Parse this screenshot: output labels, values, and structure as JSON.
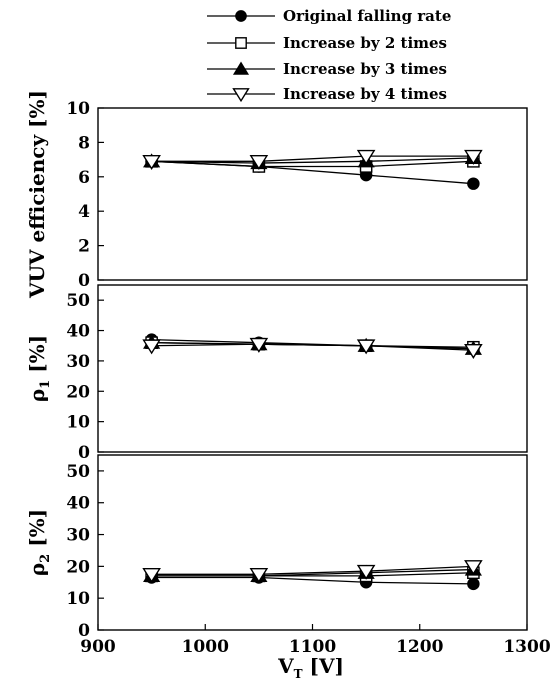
{
  "chart_data": {
    "type": "line",
    "x": [
      950,
      1050,
      1150,
      1250
    ],
    "xlim": [
      900,
      1300
    ],
    "xticks": [
      "900",
      "1000",
      "1100",
      "1200",
      "1300"
    ],
    "xlabel": "V",
    "xlabel_sub": "T",
    "xlabel_unit": " [V]",
    "legend_position": "top-right",
    "series": [
      {
        "key": "orig",
        "name": "Original falling rate",
        "marker": "filled-circle"
      },
      {
        "key": "x2",
        "name": "Increase by 2 times",
        "marker": "open-square"
      },
      {
        "key": "x3",
        "name": "Increase by 3 times",
        "marker": "filled-triangle-up"
      },
      {
        "key": "x4",
        "name": "Increase by 4 times",
        "marker": "open-triangle-down"
      }
    ],
    "panels": [
      {
        "ylabel": "VUV efficiency [%]",
        "ylim": [
          0,
          10
        ],
        "yticks": [
          "0",
          "2",
          "4",
          "6",
          "8",
          "10"
        ],
        "values": {
          "orig": [
            6.9,
            6.6,
            6.1,
            5.6
          ],
          "x2": [
            6.9,
            6.6,
            6.6,
            6.9
          ],
          "x3": [
            6.9,
            6.8,
            6.9,
            7.1
          ],
          "x4": [
            6.9,
            6.9,
            7.2,
            7.2
          ]
        }
      },
      {
        "ylabel": "ρ",
        "ylabel_sub": "1",
        "ylabel_unit": " [%]",
        "ylim": [
          0,
          55
        ],
        "yticks": [
          "0",
          "10",
          "20",
          "30",
          "40",
          "50"
        ],
        "values": {
          "orig": [
            37,
            36,
            35,
            34
          ],
          "x2": [
            36,
            35.5,
            35,
            34.5
          ],
          "x3": [
            36,
            35.5,
            35,
            34
          ],
          "x4": [
            35,
            35.5,
            35,
            33.5
          ]
        }
      },
      {
        "ylabel": "ρ",
        "ylabel_sub": "2",
        "ylabel_unit": " [%]",
        "ylim": [
          0,
          55
        ],
        "yticks": [
          "0",
          "10",
          "20",
          "30",
          "40",
          "50"
        ],
        "values": {
          "orig": [
            16.5,
            16.5,
            15,
            14.5
          ],
          "x2": [
            17,
            17,
            17,
            18
          ],
          "x3": [
            17,
            17,
            18,
            19
          ],
          "x4": [
            17.5,
            17.5,
            18.5,
            20
          ]
        }
      }
    ]
  }
}
